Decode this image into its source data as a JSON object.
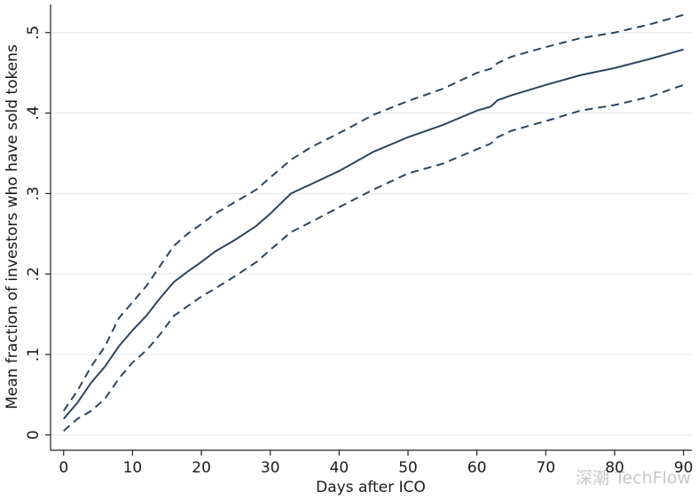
{
  "chart_data": {
    "type": "line",
    "x_label": "Days after ICO",
    "y_label": "Mean fraction of investors who have sold tokens",
    "watermark": "深潮 TechFlow",
    "x": [
      0,
      2,
      4,
      6,
      8,
      10,
      12,
      14,
      16,
      18,
      20,
      22,
      25,
      28,
      30,
      33,
      36,
      40,
      45,
      50,
      55,
      60,
      62,
      63,
      65,
      70,
      75,
      80,
      85,
      90
    ],
    "series": [
      {
        "color": "#2b4560",
        "line_style": "solid",
        "values": [
          0.02,
          0.04,
          0.065,
          0.085,
          0.11,
          0.13,
          0.148,
          0.17,
          0.19,
          0.203,
          0.215,
          0.228,
          0.243,
          0.26,
          0.275,
          0.3,
          0.312,
          0.328,
          0.352,
          0.37,
          0.385,
          0.403,
          0.408,
          0.416,
          0.422,
          0.435,
          0.447,
          0.456,
          0.467,
          0.479
        ]
      },
      {
        "color": "#2b4560",
        "line_style": "dashed",
        "values": [
          0.03,
          0.055,
          0.085,
          0.11,
          0.145,
          0.165,
          0.185,
          0.21,
          0.235,
          0.25,
          0.262,
          0.275,
          0.29,
          0.305,
          0.32,
          0.342,
          0.358,
          0.375,
          0.398,
          0.415,
          0.43,
          0.45,
          0.455,
          0.462,
          0.47,
          0.482,
          0.493,
          0.5,
          0.51,
          0.522
        ]
      },
      {
        "color": "#2b4560",
        "line_style": "dashed",
        "values": [
          0.005,
          0.02,
          0.03,
          0.045,
          0.07,
          0.09,
          0.105,
          0.125,
          0.148,
          0.16,
          0.172,
          0.182,
          0.198,
          0.215,
          0.23,
          0.252,
          0.265,
          0.283,
          0.305,
          0.325,
          0.337,
          0.355,
          0.362,
          0.37,
          0.378,
          0.39,
          0.403,
          0.41,
          0.42,
          0.435
        ]
      }
    ],
    "xlim": [
      -1.9,
      91.2
    ],
    "ylim": [
      -0.019,
      0.535
    ],
    "xticks": [
      0,
      10,
      20,
      30,
      40,
      50,
      60,
      70,
      80,
      90
    ],
    "yticks": [
      0,
      {
        "value": 0.1,
        "label": ".1"
      },
      {
        "value": 0.2,
        "label": ".2"
      },
      {
        "value": 0.3,
        "label": ".3"
      },
      {
        "value": 0.4,
        "label": ".4"
      },
      {
        "value": 0.5,
        "label": ".5"
      }
    ],
    "grid": true
  }
}
